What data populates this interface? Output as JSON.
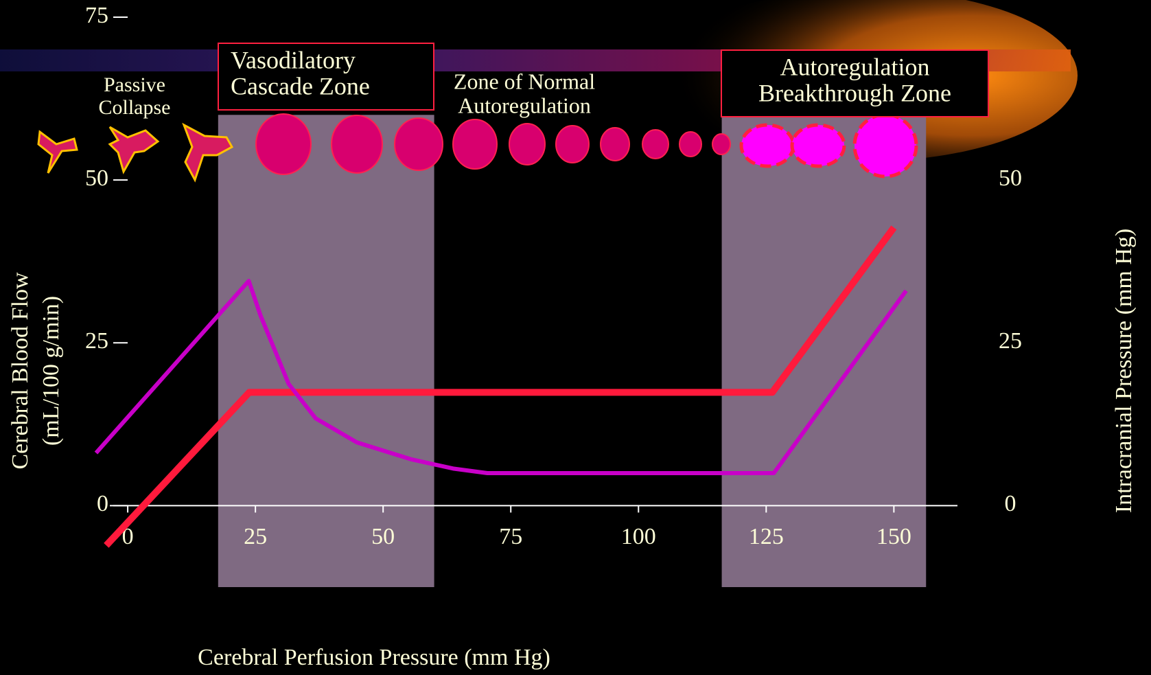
{
  "chart_data": {
    "type": "line",
    "xlabel": "Cerebral Perfusion Pressure (mm Hg)",
    "ylabel": [
      "Cerebral Blood Flow",
      "(mL/100 g/min)"
    ],
    "y2label": "Intracranial Pressure (mm Hg)",
    "xlim": [
      -7,
      165
    ],
    "xticks": [
      0,
      25,
      50,
      75,
      100,
      125,
      150
    ],
    "ylim": [
      -12.5,
      75
    ],
    "yticks": [
      0,
      25,
      50,
      75
    ],
    "y2lim": [
      -12.5,
      75
    ],
    "y2ticks": [
      0,
      25,
      50
    ],
    "zones": [
      {
        "xrange": [
          17.7,
          60
        ],
        "yrange": [
          -12.5,
          60
        ],
        "color": "#7f6a82",
        "label": [
          "Vasodilatory",
          "Cascade Zone"
        ]
      },
      {
        "xrange": [
          116.3,
          156.3
        ],
        "yrange": [
          -12.5,
          60
        ],
        "color": "#7f6a82",
        "label": [
          "Autoregulation",
          "Breakthrough Zone"
        ]
      }
    ],
    "annotations": [
      {
        "lines": [
          "Passive",
          "Collapse"
        ]
      },
      {
        "lines": [
          "Zone of Normal",
          "Autoregulation"
        ]
      }
    ],
    "series": [
      {
        "color": "#ff1a3c",
        "x": [
          -4.2,
          23.8,
          126.2,
          150
        ],
        "values": [
          -6.1,
          17.4,
          17.4,
          42.7
        ]
      },
      {
        "color": "#c800c8",
        "axis": "y2",
        "x": [
          -6.2,
          23.7,
          26,
          31.5,
          36.8,
          44.9,
          55.6,
          63.7,
          70.4,
          126.5,
          152.4
        ],
        "values": [
          8.1,
          34.5,
          29.2,
          18.7,
          13.4,
          9.7,
          7.1,
          5.7,
          5.0,
          5.0,
          33
        ]
      }
    ]
  }
}
